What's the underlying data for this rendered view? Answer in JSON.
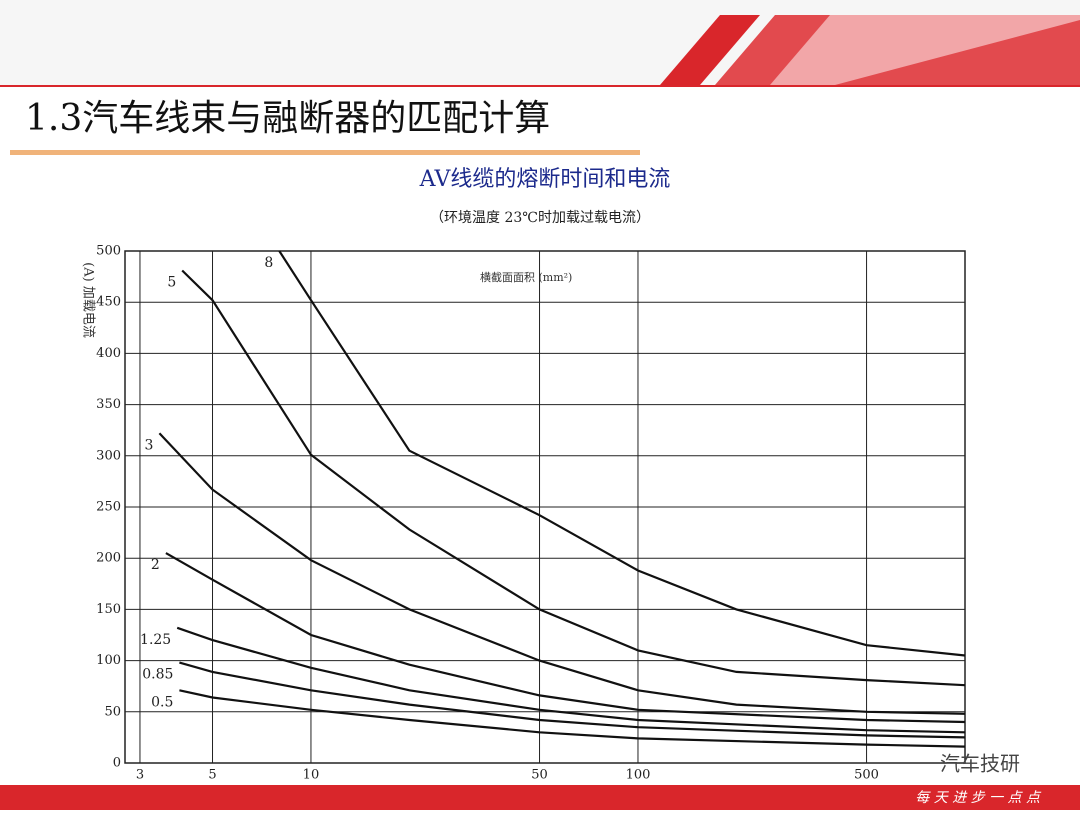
{
  "header": {
    "title": "1.3汽车线束与融断器的匹配计算"
  },
  "footer": {
    "text": "每 天 进 步 一 点 点"
  },
  "watermark": "汽车技研",
  "chart_data": {
    "type": "line",
    "title": "AV线缆的熔断时间和电流",
    "subtitle": "（环境温度 23℃时加载过载电流）",
    "y_label": "(A) 加载电流",
    "annotation": "横截面面积 (mm²)",
    "xscale": "log",
    "xlim": [
      2.7,
      1000
    ],
    "xticks": [
      3,
      5,
      10,
      50,
      100,
      500
    ],
    "ylim": [
      0,
      500
    ],
    "yticks": [
      0,
      50,
      100,
      150,
      200,
      250,
      300,
      350,
      400,
      450,
      500
    ],
    "grid": true,
    "series": [
      {
        "name": "8",
        "color": "#111111",
        "x": [
          8,
          10,
          20,
          50,
          100,
          200,
          500,
          1000
        ],
        "values": [
          500,
          452,
          305,
          242,
          188,
          150,
          115,
          105
        ]
      },
      {
        "name": "5",
        "color": "#111111",
        "x": [
          4.04,
          5,
          10,
          20,
          50,
          100,
          200,
          500,
          1000
        ],
        "values": [
          481,
          452,
          301,
          228,
          150,
          110,
          89,
          81,
          76
        ]
      },
      {
        "name": "3",
        "color": "#111111",
        "x": [
          3.44,
          5,
          10,
          20,
          50,
          100,
          200,
          500,
          1000
        ],
        "values": [
          322,
          267,
          198,
          150,
          100,
          71,
          57,
          50,
          48
        ]
      },
      {
        "name": "2",
        "color": "#111111",
        "x": [
          3.6,
          5,
          10,
          20,
          50,
          100,
          500,
          1000
        ],
        "values": [
          205,
          179,
          125,
          96,
          66,
          52,
          42,
          40
        ]
      },
      {
        "name": "1.25",
        "color": "#111111",
        "x": [
          3.9,
          5,
          10,
          20,
          50,
          100,
          500,
          1000
        ],
        "values": [
          132,
          120,
          93,
          71,
          52,
          42,
          32,
          30
        ]
      },
      {
        "name": "0.85",
        "color": "#111111",
        "x": [
          3.96,
          5,
          10,
          20,
          50,
          100,
          500,
          1000
        ],
        "values": [
          98,
          89,
          71,
          57,
          42,
          35,
          27,
          25
        ]
      },
      {
        "name": "0.5",
        "color": "#111111",
        "x": [
          3.96,
          5,
          10,
          20,
          50,
          100,
          500,
          1000
        ],
        "values": [
          71,
          64,
          52,
          42,
          30,
          24,
          18,
          16
        ]
      }
    ]
  }
}
